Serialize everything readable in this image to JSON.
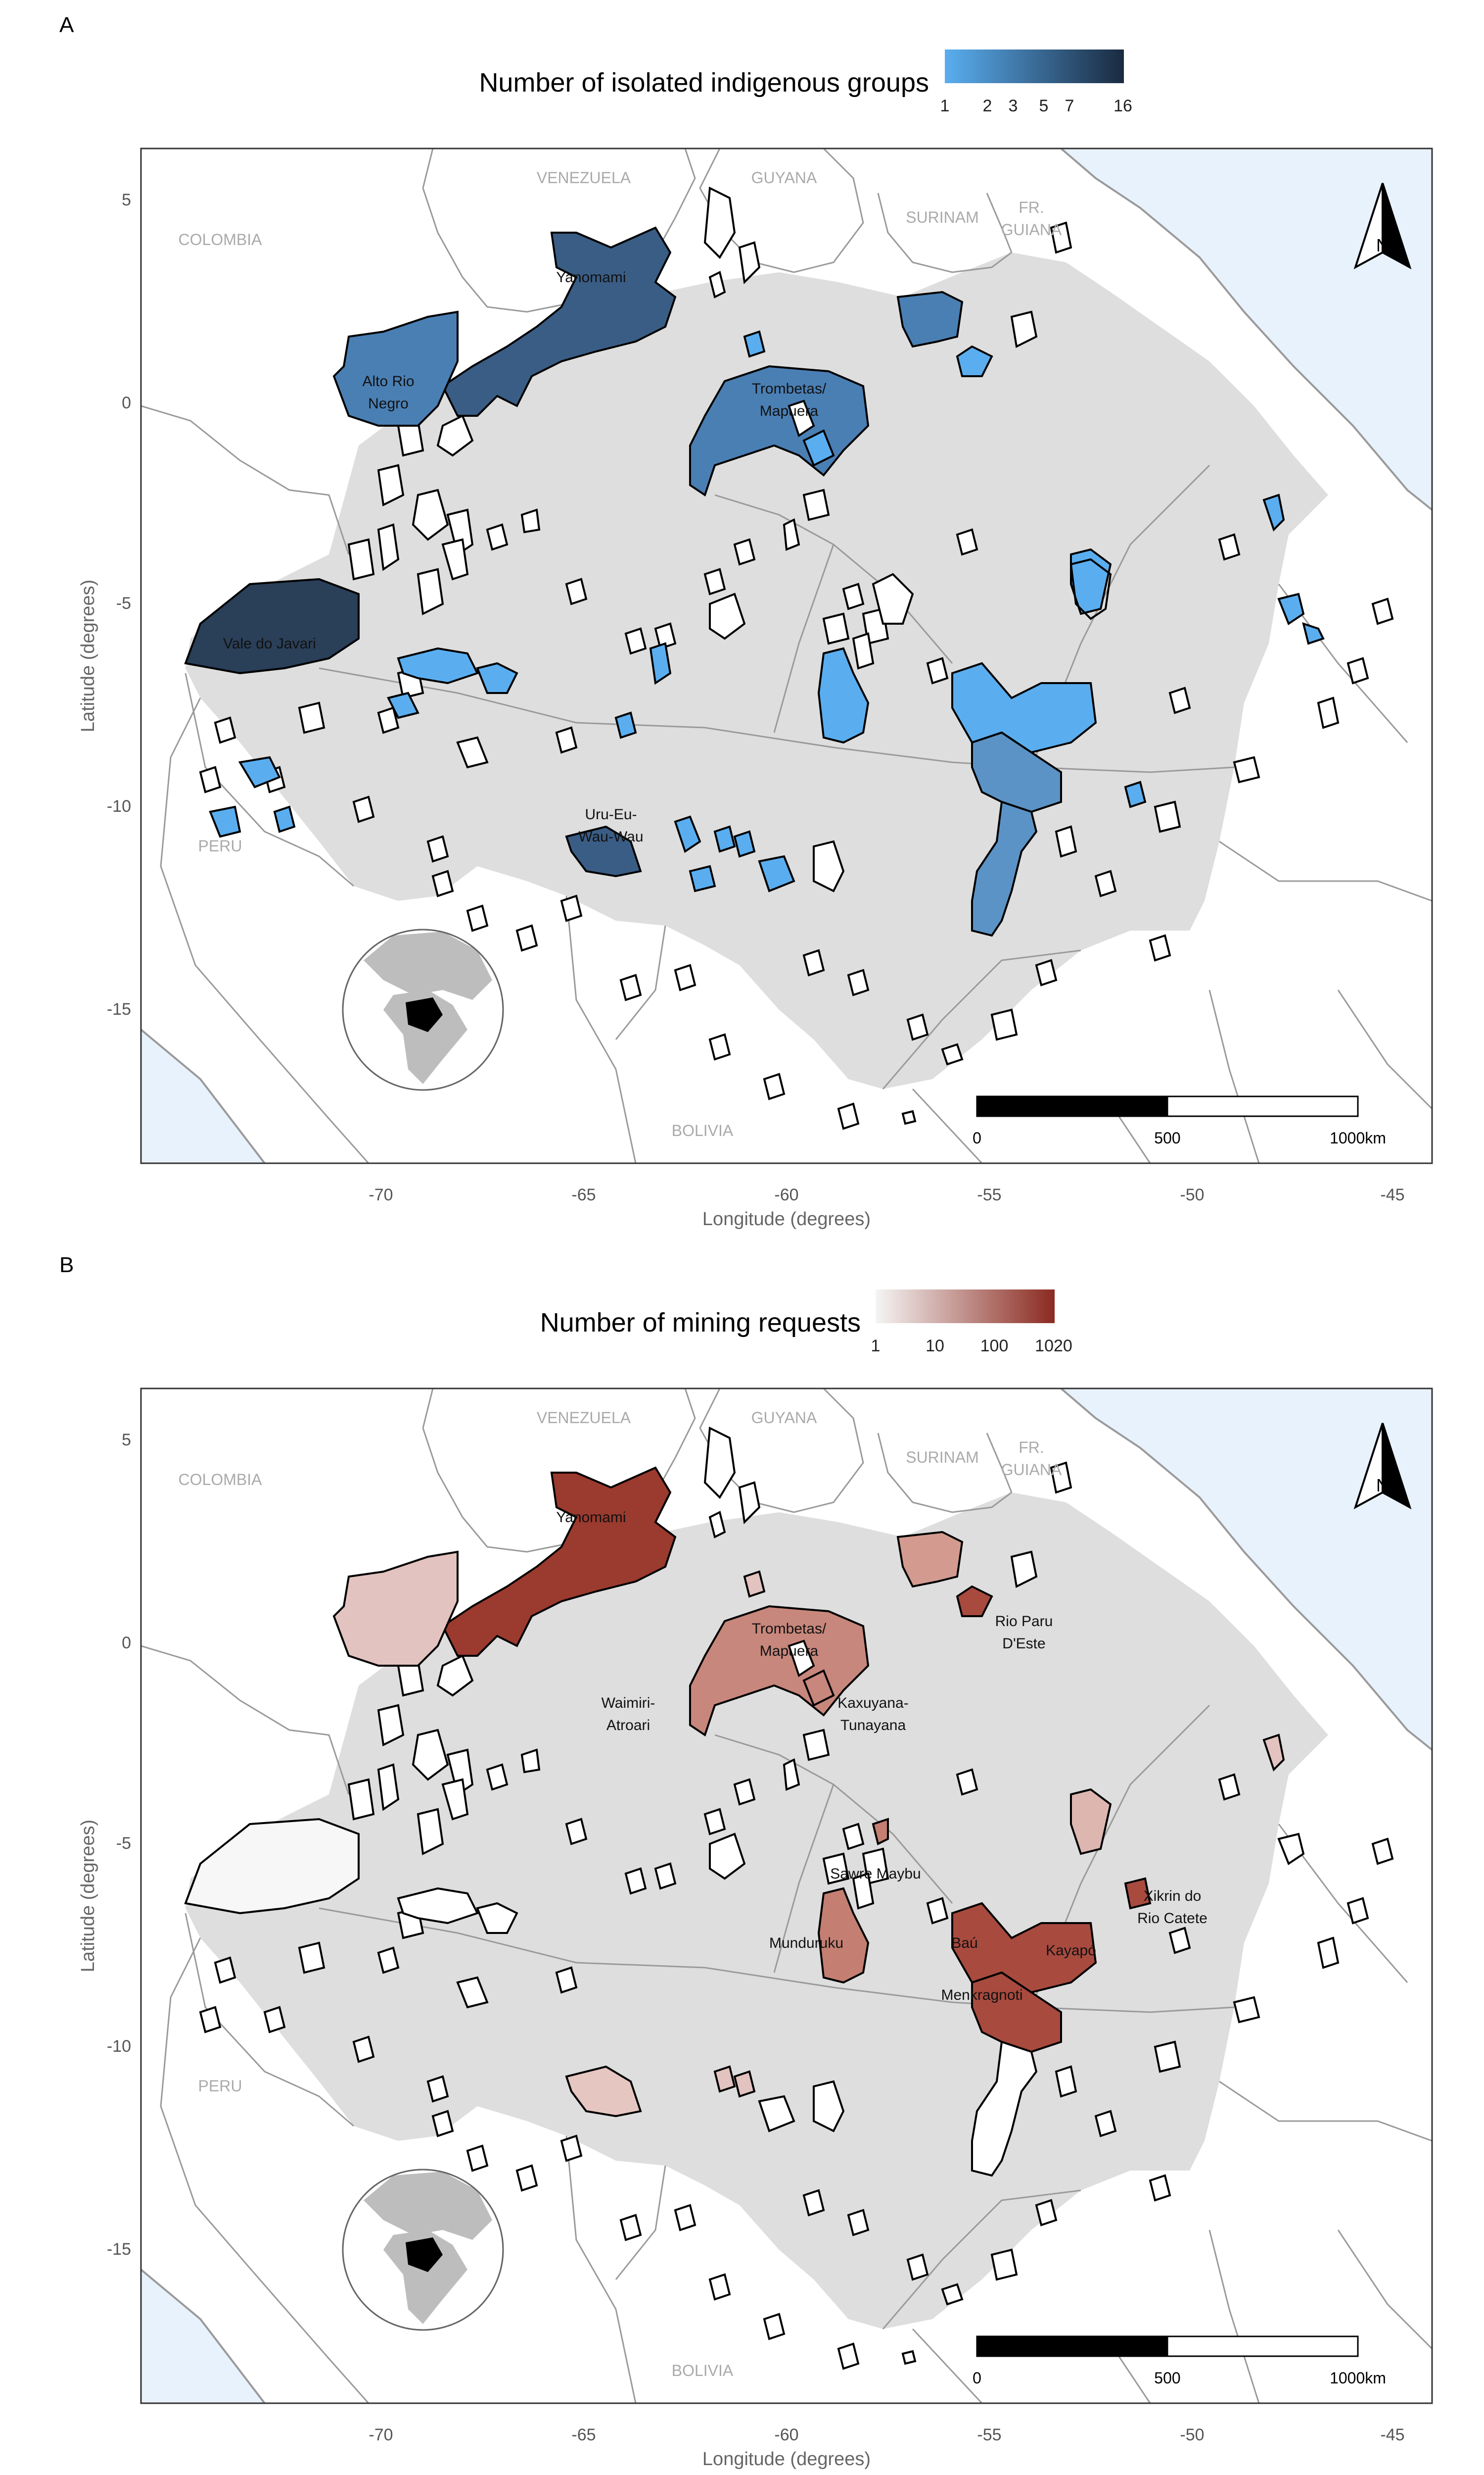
{
  "panels": [
    {
      "letter": "A",
      "legend_title": "Number of isolated indigenous groups",
      "legend_ticks": [
        "1",
        "2",
        "3",
        "5",
        "7",
        "16"
      ],
      "legend_colors": [
        "#5aaef0",
        "#1a2a40"
      ],
      "scale_labels": [
        "0",
        "500",
        "1000km"
      ],
      "north": "N",
      "countries": [
        "VENEZUELA",
        "GUYANA",
        "SURINAM",
        "FR.",
        "GUIANA",
        "COLOMBIA",
        "PERU",
        "BOLIVIA"
      ],
      "x_ticks": [
        "-70",
        "-65",
        "-60",
        "-55",
        "-50",
        "-45"
      ],
      "y_ticks": [
        "5",
        "0",
        "-5",
        "-10",
        "-15"
      ],
      "xlabel": "Longitude (degrees)",
      "ylabel": "Latitude (degrees)",
      "territory_labels": [
        "Yanomami",
        "Alto Rio",
        "Negro",
        "Trombetas/",
        "Mapuera",
        "Vale do Javari",
        "Uru-Eu-",
        "Wau-Wau"
      ]
    },
    {
      "letter": "B",
      "legend_title": "Number of mining requests",
      "legend_ticks": [
        "1",
        "10",
        "100",
        "1020"
      ],
      "legend_colors": [
        "#f5f5f5",
        "#8b2a20"
      ],
      "scale_labels": [
        "0",
        "500",
        "1000km"
      ],
      "north": "N",
      "countries": [
        "VENEZUELA",
        "GUYANA",
        "SURINAM",
        "FR.",
        "GUIANA",
        "COLOMBIA",
        "PERU",
        "BOLIVIA"
      ],
      "x_ticks": [
        "-70",
        "-65",
        "-60",
        "-55",
        "-50",
        "-45"
      ],
      "y_ticks": [
        "5",
        "0",
        "-5",
        "-10",
        "-15"
      ],
      "xlabel": "Longitude (degrees)",
      "ylabel": "Latitude (degrees)",
      "territory_labels": [
        "Yanomami",
        "Trombetas/",
        "Mapuera",
        "Rio Paru",
        "D'Este",
        "Waimiri-",
        "Atroari",
        "Kaxuyana-",
        "Tunayana",
        "Sawre Maybu",
        "Xikrin do",
        "Rio Catete",
        "Munduruku",
        "Baú",
        "Kayapó",
        "Menkragnoti"
      ]
    }
  ],
  "colors": {
    "ocean": "#e8f2fc",
    "amazon": "#dedede",
    "land": "#ffffff",
    "border": "#9a9a9a",
    "outline": "#000000"
  }
}
